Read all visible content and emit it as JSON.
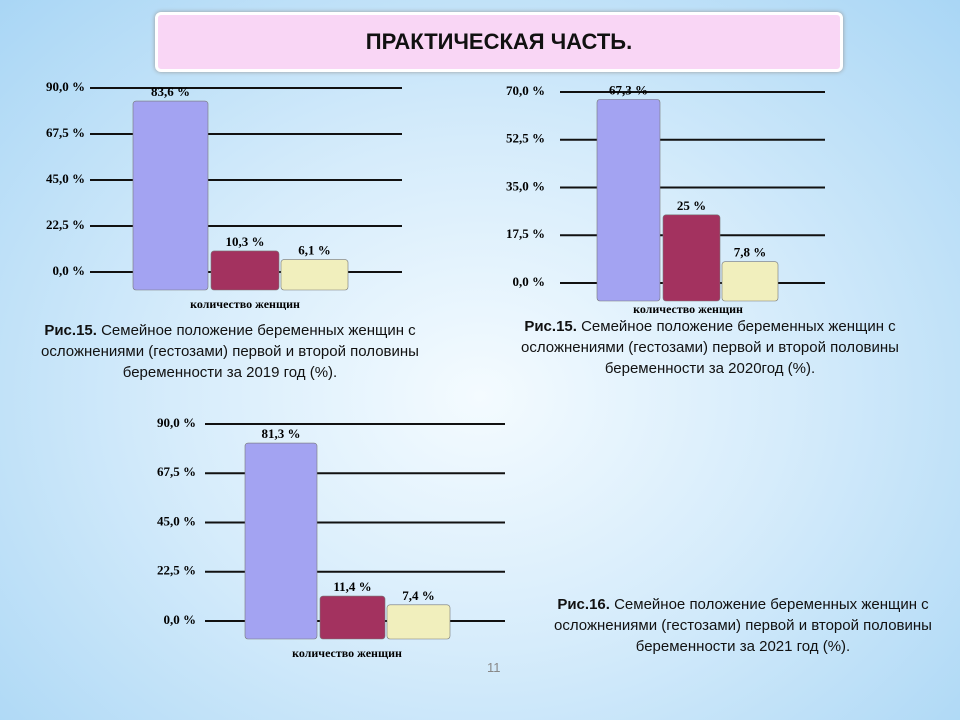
{
  "title": "ПРАКТИЧЕСКАЯ ЧАСТЬ.",
  "page_number": "11",
  "chart_data": [
    {
      "type": "bar",
      "x_label": "количество женщин",
      "values": [
        83.6,
        10.3,
        6.1
      ],
      "value_labels": [
        "83,6 %",
        "10,3 %",
        "6,1 %"
      ],
      "colors": [
        "#a3a3f2",
        "#a3325f",
        "#f1efbd"
      ],
      "ylim": [
        0,
        90
      ],
      "yticks": [
        {
          "value": 0,
          "label": "0,0 %"
        },
        {
          "value": 22.5,
          "label": "22,5 %"
        },
        {
          "value": 45,
          "label": "45,0 %"
        },
        {
          "value": 67.5,
          "label": "67,5 %"
        },
        {
          "value": 90,
          "label": "90,0 %"
        }
      ],
      "grid": true,
      "caption_label": "Рис.15.",
      "caption": "Семейное положение беременных женщин с осложнениями (гестозами) первой и второй половины беременности за 2019 год (%)."
    },
    {
      "type": "bar",
      "x_label": "количество женщин",
      "values": [
        67.3,
        25,
        7.8
      ],
      "value_labels": [
        "67,3 %",
        "25 %",
        "7,8 %"
      ],
      "colors": [
        "#a3a3f2",
        "#a3325f",
        "#f1efbd"
      ],
      "ylim": [
        0,
        70
      ],
      "yticks": [
        {
          "value": 0,
          "label": "0,0 %"
        },
        {
          "value": 17.5,
          "label": "17,5 %"
        },
        {
          "value": 35,
          "label": "35,0 %"
        },
        {
          "value": 52.5,
          "label": "52,5 %"
        },
        {
          "value": 70,
          "label": "70,0 %"
        }
      ],
      "grid": true,
      "caption_label": "Рис.15.",
      "caption": "Семейное положение беременных женщин с осложнениями (гестозами) первой и второй половины беременности за 2020год (%)."
    },
    {
      "type": "bar",
      "x_label": "количество женщин",
      "values": [
        81.3,
        11.4,
        7.4
      ],
      "value_labels": [
        "81,3 %",
        "11,4 %",
        "7,4 %"
      ],
      "colors": [
        "#a3a3f2",
        "#a3325f",
        "#f1efbd"
      ],
      "ylim": [
        0,
        90
      ],
      "yticks": [
        {
          "value": 0,
          "label": "0,0 %"
        },
        {
          "value": 22.5,
          "label": "22,5 %"
        },
        {
          "value": 45,
          "label": "45,0 %"
        },
        {
          "value": 67.5,
          "label": "67,5 %"
        },
        {
          "value": 90,
          "label": "90,0 %"
        }
      ],
      "grid": true,
      "caption_label": "Рис.16.",
      "caption": "Семейное положение беременных женщин с осложнениями (гестозами) первой и второй половины беременности за 2021 год (%)."
    }
  ]
}
